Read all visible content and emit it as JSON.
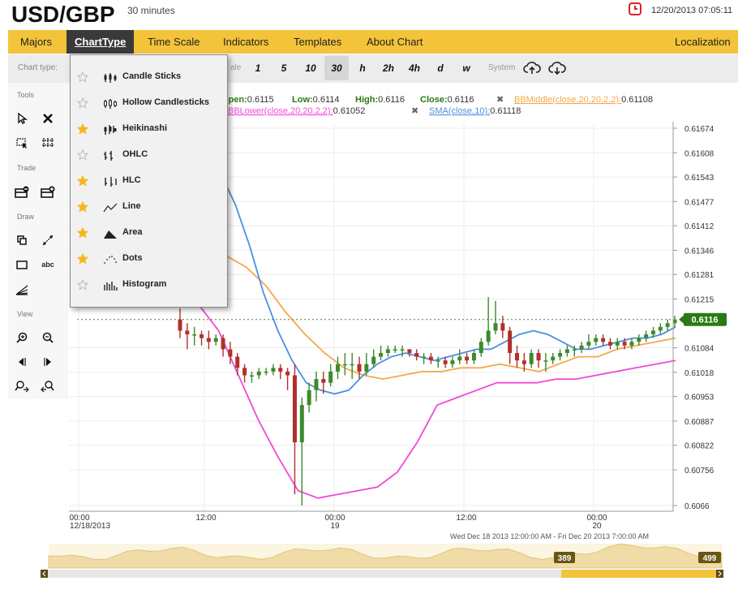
{
  "header": {
    "title": "USD/GBP",
    "subtitle": "30 minutes",
    "datetime": "12/20/2013 07:05:11",
    "clock_icon": "clock-icon"
  },
  "menu": {
    "items": [
      "Majors",
      "ChartType",
      "Time Scale",
      "Indicators",
      "Templates",
      "About Chart"
    ],
    "active": "ChartType",
    "right": "Localization",
    "bg": "#f3c33a"
  },
  "toolbar": {
    "chart_type_label": "Chart type:",
    "scale_suffix": "ale",
    "periods": [
      "1",
      "5",
      "10",
      "30",
      "h",
      "2h",
      "4h",
      "d",
      "w"
    ],
    "selected_period": "30",
    "system_label": "System",
    "upload_icon": "cloud-upload-icon",
    "download_icon": "cloud-download-icon"
  },
  "sidebar": {
    "tools": "Tools",
    "trade": "Trade",
    "draw": "Draw",
    "view": "View",
    "text_tool": "abc"
  },
  "dropdown": {
    "items": [
      {
        "label": "Candle Sticks",
        "favorite": false,
        "icon": "candlesticks-icon"
      },
      {
        "label": "Hollow Candlesticks",
        "favorite": false,
        "icon": "hollow-candlesticks-icon"
      },
      {
        "label": "Heikinashi",
        "favorite": true,
        "icon": "heikinashi-icon"
      },
      {
        "label": "OHLC",
        "favorite": false,
        "icon": "ohlc-icon"
      },
      {
        "label": "HLC",
        "favorite": true,
        "icon": "hlc-icon"
      },
      {
        "label": "Line",
        "favorite": true,
        "icon": "line-chart-icon"
      },
      {
        "label": "Area",
        "favorite": true,
        "icon": "area-chart-icon"
      },
      {
        "label": "Dots",
        "favorite": true,
        "icon": "dots-chart-icon"
      },
      {
        "label": "Histogram",
        "favorite": false,
        "icon": "histogram-icon"
      }
    ]
  },
  "chart": {
    "ohlc": {
      "open_label": "Open:",
      "open": "0.6115",
      "low_label": "Low:",
      "low": "0.6114",
      "high_label": "High:",
      "high": "0.6116",
      "close_label": "Close:",
      "close": "0.6116"
    },
    "bbmiddle_label": "BBMiddle(close,20,20,2,2):",
    "bbmiddle_value": "0.61108",
    "bblower_label": "BBLower(close,20,20,2,2):",
    "bblower_value": "0.61052",
    "sma_label": "SMA(close,10):",
    "sma_value": "0.61118",
    "current_price": "0.6116",
    "y_ticks": [
      "0.61674",
      "0.61608",
      "0.61543",
      "0.61477",
      "0.61412",
      "0.61346",
      "0.61281",
      "0.61215",
      "0.61084",
      "0.61018",
      "0.60953",
      "0.60887",
      "0.60822",
      "0.60756",
      "0.6066"
    ],
    "x_ticks": [
      {
        "t": "00:00",
        "d": "12/18/2013"
      },
      {
        "t": "12:00",
        "d": ""
      },
      {
        "t": "00:00",
        "d": "19"
      },
      {
        "t": "12:00",
        "d": ""
      },
      {
        "t": "00:00",
        "d": "20"
      }
    ],
    "range_text": "Wed Dec 18 2013 12:00:00 AM - Fri Dec 20 2013 7:00:00 AM",
    "colors": {
      "up": "#3d8a2b",
      "down": "#b0302c",
      "bbmiddle": "#f5a84a",
      "bblower": "#f048d8",
      "sma": "#4a90e2",
      "price_tag": "#2a7a14"
    }
  },
  "chart_data": {
    "type": "candlestick",
    "ylim": [
      0.6066,
      0.61674
    ],
    "y_ticks": [
      0.61674,
      0.61608,
      0.61543,
      0.61477,
      0.61412,
      0.61346,
      0.61281,
      0.61215,
      0.61084,
      0.61018,
      0.60953,
      0.60887,
      0.60822,
      0.60756,
      0.6066
    ],
    "x_labels": [
      "00:00 12/18/2013",
      "12:00",
      "00:00 19",
      "12:00",
      "00:00 20"
    ],
    "candles": [
      [
        0.6116,
        0.6113,
        0.6119,
        0.6111
      ],
      [
        0.6113,
        0.6112,
        0.6115,
        0.6108
      ],
      [
        0.6112,
        0.6112,
        0.6114,
        0.6109
      ],
      [
        0.6112,
        0.6111,
        0.6113,
        0.6109
      ],
      [
        0.6111,
        0.611,
        0.6113,
        0.6108
      ],
      [
        0.611,
        0.6111,
        0.6112,
        0.6109
      ],
      [
        0.6111,
        0.6108,
        0.6112,
        0.6106
      ],
      [
        0.6108,
        0.6106,
        0.611,
        0.6104
      ],
      [
        0.6106,
        0.6103,
        0.6107,
        0.6101
      ],
      [
        0.6103,
        0.6101,
        0.6104,
        0.6099
      ],
      [
        0.6101,
        0.6101,
        0.6102,
        0.6099
      ],
      [
        0.6101,
        0.6102,
        0.6103,
        0.61
      ],
      [
        0.6102,
        0.6102,
        0.6103,
        0.6101
      ],
      [
        0.6102,
        0.6103,
        0.6104,
        0.6101
      ],
      [
        0.6103,
        0.6102,
        0.6104,
        0.61
      ],
      [
        0.6102,
        0.6101,
        0.6103,
        0.6097
      ],
      [
        0.6101,
        0.6083,
        0.6104,
        0.6069
      ],
      [
        0.6083,
        0.6093,
        0.6095,
        0.6066
      ],
      [
        0.6093,
        0.6097,
        0.6099,
        0.6091
      ],
      [
        0.6097,
        0.61,
        0.6102,
        0.6094
      ],
      [
        0.61,
        0.6099,
        0.6102,
        0.6096
      ],
      [
        0.6099,
        0.6102,
        0.6104,
        0.6098
      ],
      [
        0.6102,
        0.6104,
        0.6106,
        0.61
      ],
      [
        0.6104,
        0.6104,
        0.6107,
        0.6101
      ],
      [
        0.6104,
        0.6104,
        0.6107,
        0.61
      ],
      [
        0.6104,
        0.6102,
        0.6106,
        0.61
      ],
      [
        0.6102,
        0.6104,
        0.6107,
        0.6101
      ],
      [
        0.6104,
        0.6106,
        0.6108,
        0.6103
      ],
      [
        0.6106,
        0.6107,
        0.6109,
        0.6105
      ],
      [
        0.6107,
        0.6108,
        0.6109,
        0.6106
      ],
      [
        0.6108,
        0.6108,
        0.6109,
        0.6107
      ],
      [
        0.6108,
        0.6108,
        0.6109,
        0.6106
      ],
      [
        0.6108,
        0.6107,
        0.6108,
        0.6106
      ],
      [
        0.6107,
        0.6106,
        0.6108,
        0.6105
      ],
      [
        0.6106,
        0.6106,
        0.6107,
        0.6104
      ],
      [
        0.6106,
        0.6105,
        0.6107,
        0.6104
      ],
      [
        0.6105,
        0.6105,
        0.6106,
        0.6103
      ],
      [
        0.6105,
        0.6104,
        0.6106,
        0.6103
      ],
      [
        0.6104,
        0.6105,
        0.6106,
        0.6103
      ],
      [
        0.6105,
        0.6106,
        0.6108,
        0.6104
      ],
      [
        0.6106,
        0.6105,
        0.6107,
        0.6104
      ],
      [
        0.6105,
        0.6107,
        0.6108,
        0.6104
      ],
      [
        0.6107,
        0.611,
        0.6111,
        0.6106
      ],
      [
        0.611,
        0.6113,
        0.6122,
        0.6109
      ],
      [
        0.6113,
        0.6115,
        0.6121,
        0.6112
      ],
      [
        0.6115,
        0.6113,
        0.6117,
        0.6111
      ],
      [
        0.6113,
        0.6107,
        0.6114,
        0.6104
      ],
      [
        0.6107,
        0.6105,
        0.6109,
        0.6103
      ],
      [
        0.6105,
        0.6104,
        0.6107,
        0.6102
      ],
      [
        0.6104,
        0.6107,
        0.6108,
        0.6103
      ],
      [
        0.6107,
        0.6105,
        0.6108,
        0.6103
      ],
      [
        0.6105,
        0.6105,
        0.6107,
        0.6102
      ],
      [
        0.6105,
        0.6106,
        0.6107,
        0.6104
      ],
      [
        0.6106,
        0.6107,
        0.6108,
        0.6105
      ],
      [
        0.6107,
        0.6108,
        0.6109,
        0.6106
      ],
      [
        0.6108,
        0.6108,
        0.6109,
        0.6106
      ],
      [
        0.6108,
        0.6109,
        0.611,
        0.6107
      ],
      [
        0.6109,
        0.611,
        0.6112,
        0.6108
      ],
      [
        0.611,
        0.6111,
        0.6112,
        0.6109
      ],
      [
        0.6111,
        0.611,
        0.6112,
        0.6109
      ],
      [
        0.611,
        0.6109,
        0.6111,
        0.6108
      ],
      [
        0.6109,
        0.611,
        0.6111,
        0.6108
      ],
      [
        0.611,
        0.6109,
        0.6111,
        0.6108
      ],
      [
        0.6109,
        0.611,
        0.6111,
        0.6108
      ],
      [
        0.611,
        0.6111,
        0.6112,
        0.6109
      ],
      [
        0.6111,
        0.6112,
        0.6113,
        0.611
      ],
      [
        0.6112,
        0.6113,
        0.6114,
        0.6111
      ],
      [
        0.6113,
        0.6114,
        0.6115,
        0.6112
      ],
      [
        0.6114,
        0.6115,
        0.6116,
        0.6113
      ],
      [
        0.6115,
        0.6116,
        0.6117,
        0.6114
      ]
    ],
    "series": [
      {
        "name": "BBMiddle(close,20,20,2,2)",
        "values": [
          0.6133,
          0.613,
          0.6125,
          0.6118,
          0.6112,
          0.6107,
          0.6103,
          0.6101,
          0.61,
          0.6101,
          0.6102,
          0.6102,
          0.6103,
          0.6103,
          0.6104,
          0.6103,
          0.6102,
          0.6104,
          0.6106,
          0.6106,
          0.6108,
          0.6109,
          0.611,
          0.6111
        ]
      },
      {
        "name": "BBLower(close,20,20,2,2)",
        "values": [
          0.612,
          0.6113,
          0.6101,
          0.6089,
          0.6079,
          0.607,
          0.6068,
          0.6069,
          0.607,
          0.6071,
          0.6075,
          0.6083,
          0.6093,
          0.6095,
          0.6097,
          0.6099,
          0.6099,
          0.6099,
          0.61,
          0.61,
          0.6101,
          0.6102,
          0.6103,
          0.6104,
          0.6105
        ]
      },
      {
        "name": "SMA(close,10)",
        "values": [
          0.6158,
          0.6155,
          0.6147,
          0.6136,
          0.6123,
          0.6113,
          0.6105,
          0.6099,
          0.6097,
          0.6096,
          0.6097,
          0.6101,
          0.6104,
          0.6106,
          0.6107,
          0.6106,
          0.6105,
          0.6106,
          0.6107,
          0.6108,
          0.6108,
          0.611,
          0.6112,
          0.6113,
          0.6112,
          0.611,
          0.6108,
          0.6108,
          0.6109,
          0.611,
          0.6111,
          0.6111,
          0.6112,
          0.6114
        ]
      }
    ]
  },
  "navigator": {
    "left_value": "389",
    "right_value": "499"
  }
}
